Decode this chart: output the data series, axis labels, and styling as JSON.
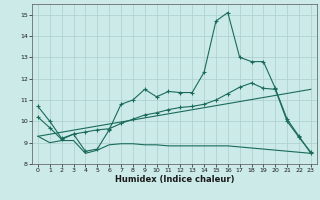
{
  "xlabel": "Humidex (Indice chaleur)",
  "xlim": [
    -0.5,
    23.5
  ],
  "ylim": [
    8,
    15.5
  ],
  "yticks": [
    8,
    9,
    10,
    11,
    12,
    13,
    14,
    15
  ],
  "xticks": [
    0,
    1,
    2,
    3,
    4,
    5,
    6,
    7,
    8,
    9,
    10,
    11,
    12,
    13,
    14,
    15,
    16,
    17,
    18,
    19,
    20,
    21,
    22,
    23
  ],
  "bg_color": "#cceae8",
  "grid_color": "#aacfcd",
  "line_color": "#1a6b5a",
  "line1_x": [
    0,
    1,
    2,
    3,
    4,
    5,
    6,
    7,
    8,
    9,
    10,
    11,
    12,
    13,
    14,
    15,
    16,
    17,
    18,
    19,
    20,
    21,
    22,
    23
  ],
  "line1_y": [
    10.7,
    10.0,
    9.2,
    9.4,
    8.6,
    8.7,
    9.6,
    10.8,
    11.0,
    11.5,
    11.15,
    11.4,
    11.35,
    11.35,
    12.3,
    14.7,
    15.1,
    13.0,
    12.8,
    12.8,
    11.55,
    10.1,
    9.3,
    8.5
  ],
  "line2_x": [
    0,
    1,
    2,
    3,
    4,
    5,
    6,
    7,
    8,
    9,
    10,
    11,
    12,
    13,
    14,
    15,
    16,
    17,
    18,
    19,
    20,
    21,
    22,
    23
  ],
  "line2_y": [
    10.2,
    9.7,
    9.15,
    9.4,
    9.5,
    9.6,
    9.65,
    9.9,
    10.1,
    10.3,
    10.4,
    10.55,
    10.65,
    10.7,
    10.8,
    11.0,
    11.3,
    11.6,
    11.8,
    11.55,
    11.5,
    10.0,
    9.25,
    8.55
  ],
  "line3_x": [
    0,
    23
  ],
  "line3_y": [
    9.3,
    11.5
  ],
  "line4_x": [
    0,
    1,
    2,
    3,
    4,
    5,
    6,
    7,
    8,
    9,
    10,
    11,
    12,
    13,
    14,
    15,
    16,
    17,
    18,
    19,
    20,
    21,
    22,
    23
  ],
  "line4_y": [
    9.3,
    9.0,
    9.1,
    9.1,
    8.5,
    8.65,
    8.9,
    8.95,
    8.95,
    8.9,
    8.9,
    8.85,
    8.85,
    8.85,
    8.85,
    8.85,
    8.85,
    8.8,
    8.75,
    8.7,
    8.65,
    8.6,
    8.55,
    8.5
  ]
}
